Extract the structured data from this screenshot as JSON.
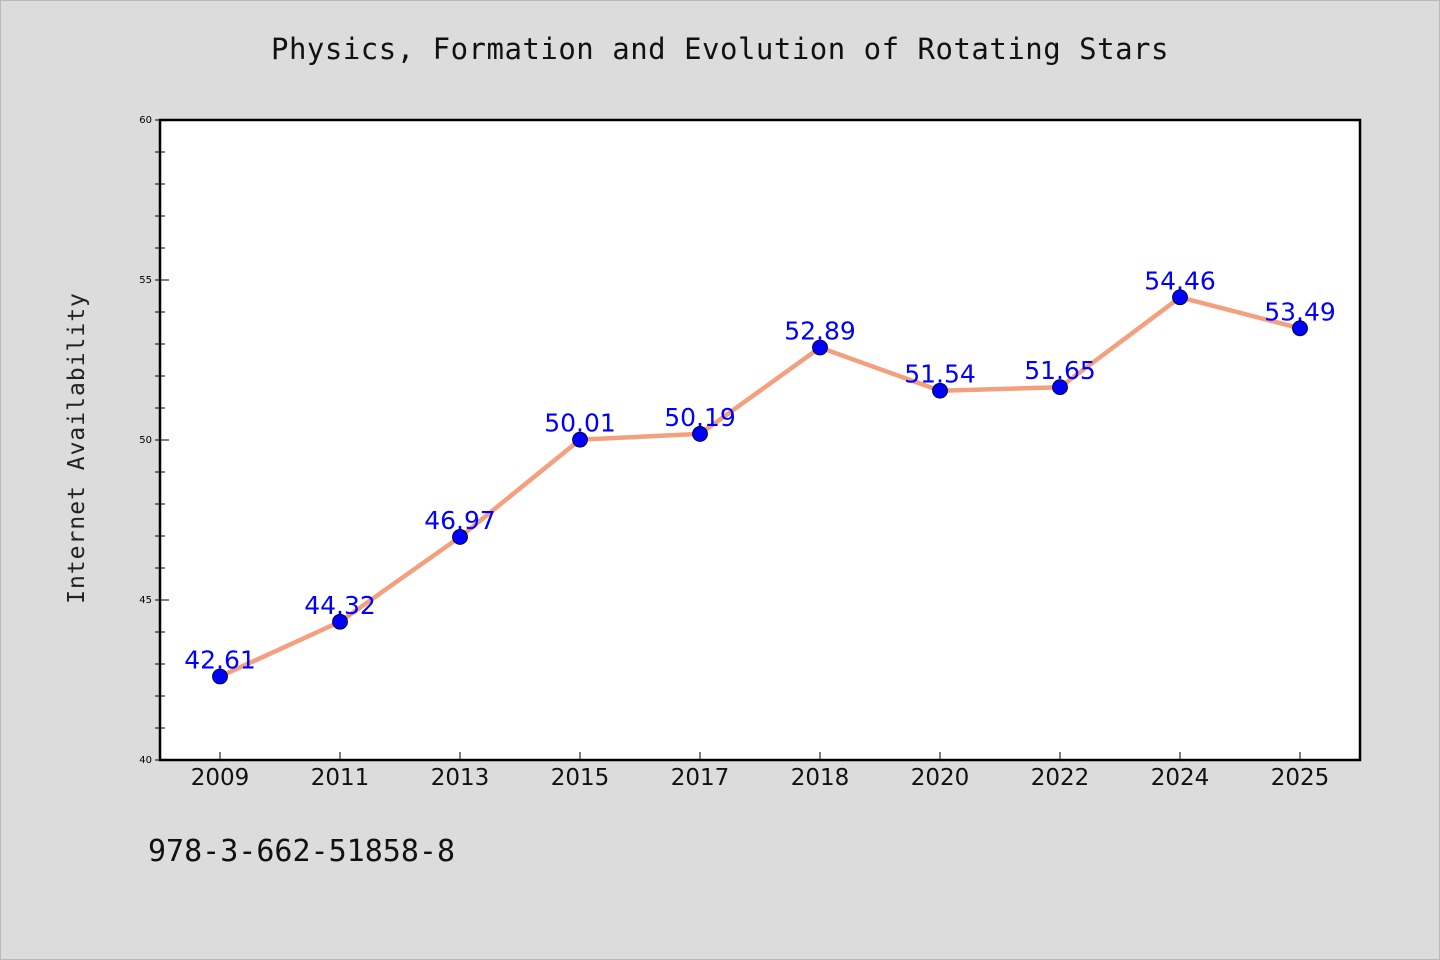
{
  "title": "Physics, Formation and Evolution of Rotating Stars",
  "footer": "978-3-662-51858-8",
  "chart_data": {
    "type": "line",
    "title": "Physics, Formation and Evolution of Rotating Stars",
    "xlabel": "",
    "ylabel": "Internet Availability",
    "categories": [
      "2009",
      "2011",
      "2013",
      "2015",
      "2017",
      "2018",
      "2020",
      "2022",
      "2024",
      "2025"
    ],
    "series": [
      {
        "values": [
          42.61,
          44.32,
          46.97,
          50.01,
          50.19,
          52.89,
          51.54,
          51.65,
          54.46,
          53.49
        ],
        "labels": [
          "42.61",
          "44.32",
          "46.97",
          "50.01",
          "50.19",
          "52.89",
          "51.54",
          "51.65",
          "54.46",
          "53.49"
        ]
      }
    ],
    "ylim": [
      40,
      60
    ],
    "yticks": [
      "40",
      "45",
      "50",
      "55",
      "60"
    ],
    "grid": false,
    "line_color": "#f4a07e",
    "marker_color": "#0000ff",
    "label_color": "#0000ff"
  }
}
